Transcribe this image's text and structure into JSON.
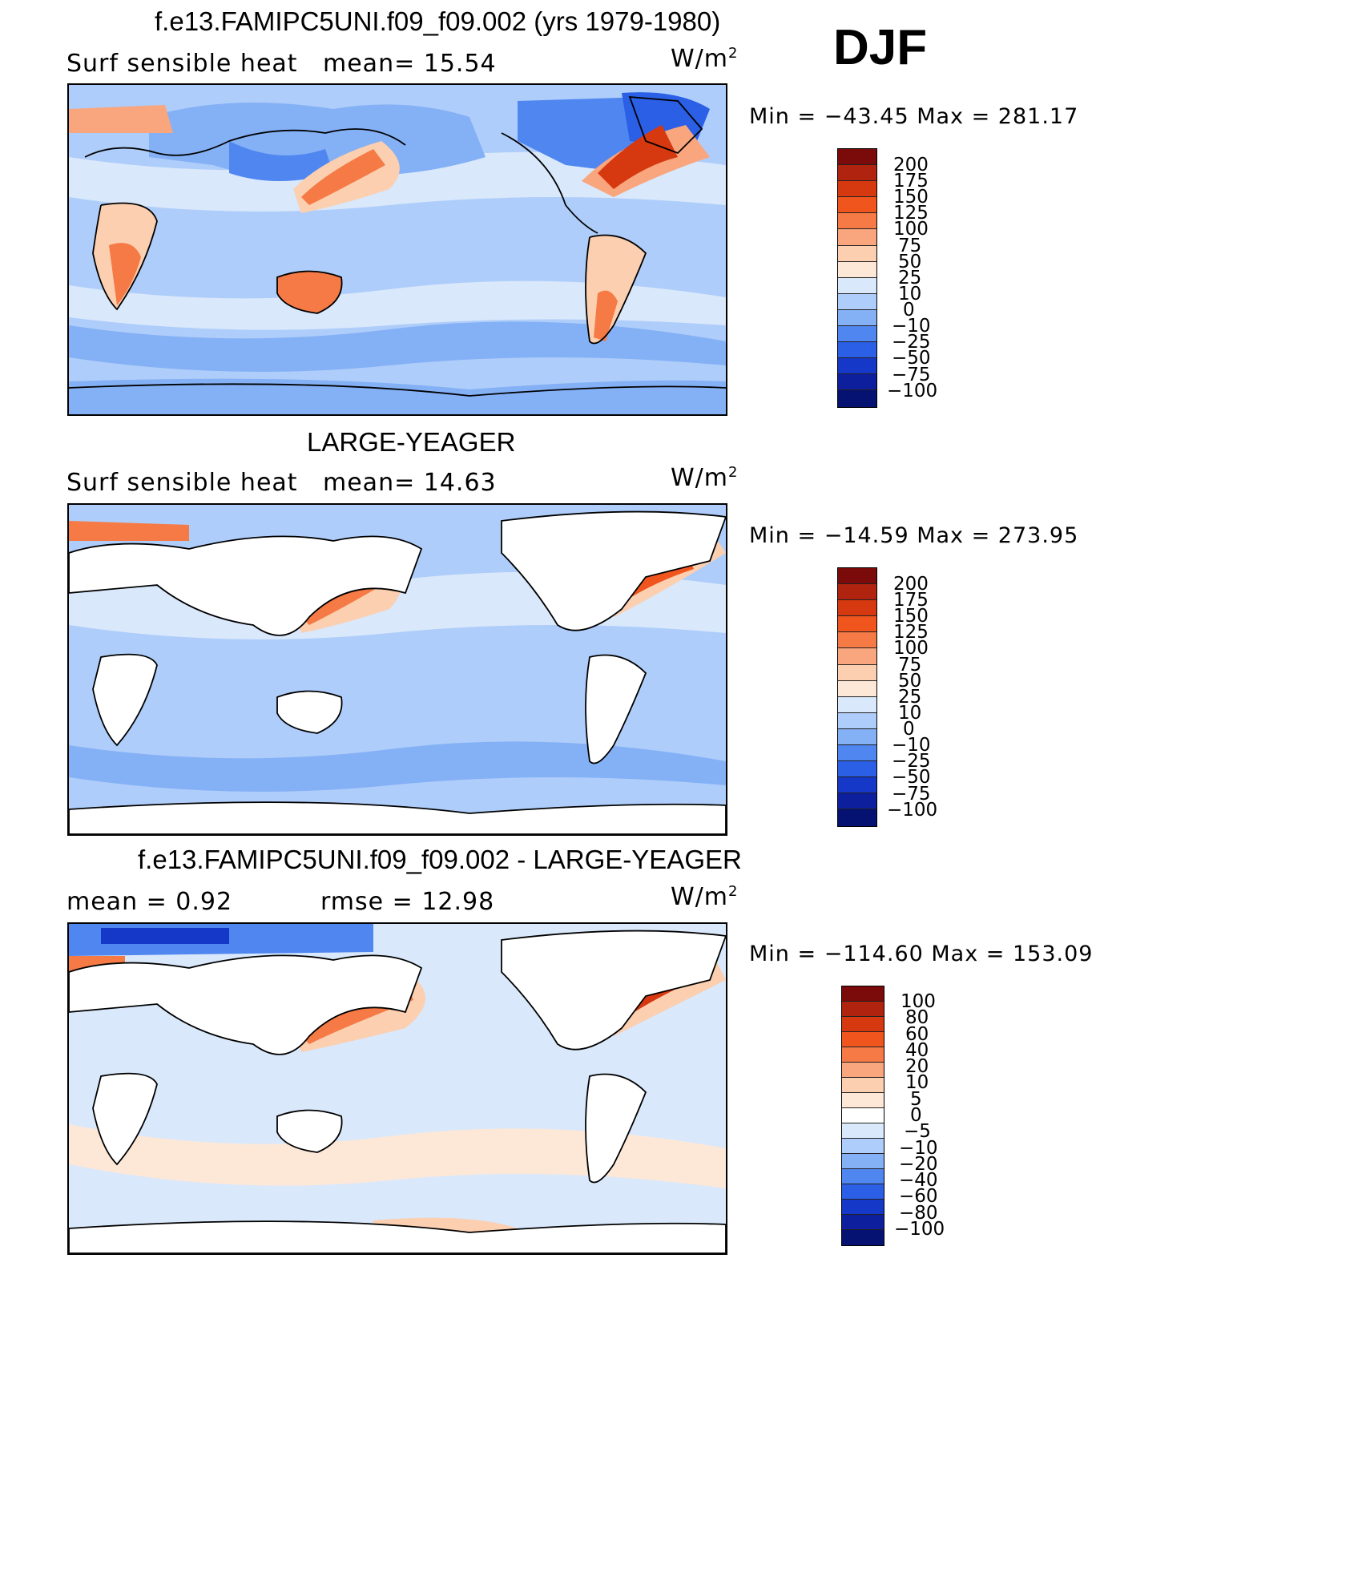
{
  "season": "DJF",
  "units": "W/m",
  "units_exp": "2",
  "panels": [
    {
      "title": "f.e13.FAMIPC5UNI.f09_f09.002 (yrs 1979-1980)",
      "left_label": "Surf  sensible  heat",
      "mid_label": "mean=   15.54",
      "min_max": "Min  =  −43.45  Max  =  281.17",
      "colorbar_labels": [
        "200",
        "175",
        "150",
        "125",
        "100",
        "75",
        "50",
        "25",
        "10",
        "0",
        "−10",
        "−25",
        "−50",
        "−75",
        "−100"
      ]
    },
    {
      "title": "LARGE-YEAGER",
      "left_label": "Surf  sensible  heat",
      "mid_label": "mean=   14.63",
      "min_max": "Min  =  −14.59  Max  =  273.95",
      "colorbar_labels": [
        "200",
        "175",
        "150",
        "125",
        "100",
        "75",
        "50",
        "25",
        "10",
        "0",
        "−10",
        "−25",
        "−50",
        "−75",
        "−100"
      ]
    },
    {
      "title": "f.e13.FAMIPC5UNI.f09_f09.002 - LARGE-YEAGER",
      "left_label": "mean  =     0.92",
      "mid_label": "rmse  =    12.98",
      "min_max": "Min  =  −114.60  Max  =  153.09",
      "colorbar_labels": [
        "100",
        "80",
        "60",
        "40",
        "20",
        "10",
        "5",
        "0",
        "−5",
        "−10",
        "−20",
        "−40",
        "−60",
        "−80",
        "−100"
      ]
    }
  ],
  "colors": {
    "panel_scale": [
      "#7b0a0a",
      "#b0230e",
      "#d6380f",
      "#f0551e",
      "#f57a45",
      "#f9a57e",
      "#fbcfb0",
      "#fde8d8",
      "#d9e8fb",
      "#aecdfa",
      "#84b0f5",
      "#4f86ef",
      "#2a5fe6",
      "#1538c8",
      "#0d1f9c",
      "#061272"
    ],
    "diff_scale": [
      "#7b0a0a",
      "#b0230e",
      "#d6380f",
      "#f0551e",
      "#f57a45",
      "#f9a57e",
      "#fbcfb0",
      "#fde8d8",
      "#ffffff",
      "#d9e8fb",
      "#aecdfa",
      "#84b0f5",
      "#4f86ef",
      "#2a5fe6",
      "#1538c8",
      "#0d1f9c",
      "#061272"
    ]
  }
}
